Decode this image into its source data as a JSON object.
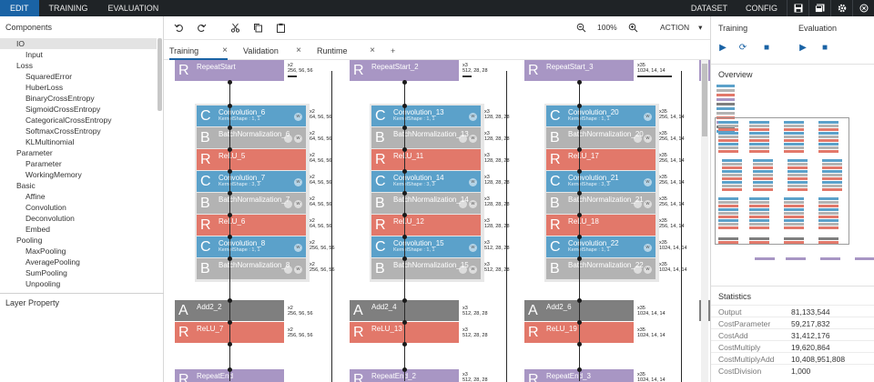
{
  "topbar": {
    "tabs": [
      "EDIT",
      "TRAINING",
      "EVALUATION"
    ],
    "right": [
      "DATASET",
      "CONFIG"
    ],
    "icons": [
      "save-icon",
      "save-all-icon",
      "gear-icon",
      "close-icon"
    ]
  },
  "left": {
    "header": "Components",
    "tree": [
      {
        "label": "IO",
        "level": 0,
        "selected": true
      },
      {
        "label": "Input",
        "level": 1
      },
      {
        "label": "Loss",
        "level": 0
      },
      {
        "label": "SquaredError",
        "level": 1
      },
      {
        "label": "HuberLoss",
        "level": 1
      },
      {
        "label": "BinaryCrossEntropy",
        "level": 1
      },
      {
        "label": "SigmoidCrossEntropy",
        "level": 1
      },
      {
        "label": "CategoricalCrossEntropy",
        "level": 1
      },
      {
        "label": "SoftmaxCrossEntropy",
        "level": 1
      },
      {
        "label": "KLMultinomial",
        "level": 1
      },
      {
        "label": "Parameter",
        "level": 0
      },
      {
        "label": "Parameter",
        "level": 1
      },
      {
        "label": "WorkingMemory",
        "level": 1
      },
      {
        "label": "Basic",
        "level": 0
      },
      {
        "label": "Affine",
        "level": 1
      },
      {
        "label": "Convolution",
        "level": 1
      },
      {
        "label": "Deconvolution",
        "level": 1
      },
      {
        "label": "Embed",
        "level": 1
      },
      {
        "label": "Pooling",
        "level": 0
      },
      {
        "label": "MaxPooling",
        "level": 1
      },
      {
        "label": "AveragePooling",
        "level": 1
      },
      {
        "label": "SumPooling",
        "level": 1
      },
      {
        "label": "Unpooling",
        "level": 1
      }
    ],
    "layer_property": "Layer Property"
  },
  "toolbar": {
    "zoom": "100%",
    "action": "ACTION"
  },
  "tabs": [
    {
      "label": "Training",
      "active": true
    },
    {
      "label": "Validation"
    },
    {
      "label": "Runtime"
    }
  ],
  "add_tab": "+",
  "tab_close": "×",
  "right": {
    "tabs": [
      "Training",
      "Evaluation"
    ],
    "overview": "Overview",
    "stats_title": "Statistics",
    "stats": [
      {
        "k": "Output",
        "v": "81,133,544"
      },
      {
        "k": "CostParameter",
        "v": "59,217,832"
      },
      {
        "k": "CostAdd",
        "v": "31,412,176"
      },
      {
        "k": "CostMultiply",
        "v": "19,620,864"
      },
      {
        "k": "CostMultiplyAdd",
        "v": "10,408,951,808"
      },
      {
        "k": "CostDivision",
        "v": "1,000"
      }
    ]
  },
  "columns": [
    {
      "repeat_start": "RepeatStart",
      "repeat_start_dim": "x2\n256, 56, 56",
      "layers": [
        {
          "letter": "C",
          "name": "Convolution_6",
          "sub": "KernelShape : 1, 1",
          "color": "blue",
          "dim": "x2\n64, 56, 56"
        },
        {
          "letter": "B",
          "name": "BatchNormalization_6",
          "color": "gray",
          "dim": "x2\n64, 56, 56"
        },
        {
          "letter": "R",
          "name": "ReLU_5",
          "color": "red",
          "dim": "x2\n64, 56, 56"
        },
        {
          "letter": "C",
          "name": "Convolution_7",
          "sub": "KernelShape : 3, 3",
          "color": "blue",
          "dim": "x2\n64, 56, 56"
        },
        {
          "letter": "B",
          "name": "BatchNormalization_7",
          "color": "gray",
          "dim": "x2\n64, 56, 56"
        },
        {
          "letter": "R",
          "name": "ReLU_6",
          "color": "red",
          "dim": "x2\n64, 56, 56"
        },
        {
          "letter": "C",
          "name": "Convolution_8",
          "sub": "KernelShape : 1, 1",
          "color": "blue",
          "dim": "x2\n256, 56, 56"
        },
        {
          "letter": "B",
          "name": "BatchNormalization_8",
          "color": "gray",
          "dim": "x2\n256, 56, 56"
        }
      ],
      "add": "Add2_2",
      "add_dim": "x2\n256, 56, 56",
      "relu": "ReLU_7",
      "relu_dim": "x2\n256, 56, 56",
      "repeat_end": "RepeatEnd",
      "repeat_end_dim": ""
    },
    {
      "repeat_start": "RepeatStart_2",
      "repeat_start_dim": "x3\n512, 28, 28",
      "layers": [
        {
          "letter": "C",
          "name": "Convolution_13",
          "sub": "KernelShape : 1, 1",
          "color": "blue",
          "dim": "x3\n128, 28, 28"
        },
        {
          "letter": "B",
          "name": "BatchNormalization_13",
          "color": "gray",
          "dim": "x3\n128, 28, 28"
        },
        {
          "letter": "R",
          "name": "ReLU_11",
          "color": "red",
          "dim": "x3\n128, 28, 28"
        },
        {
          "letter": "C",
          "name": "Convolution_14",
          "sub": "KernelShape : 3, 3",
          "color": "blue",
          "dim": "x3\n128, 28, 28"
        },
        {
          "letter": "B",
          "name": "BatchNormalization_14",
          "color": "gray",
          "dim": "x3\n128, 28, 28"
        },
        {
          "letter": "R",
          "name": "ReLU_12",
          "color": "red",
          "dim": "x3\n128, 28, 28"
        },
        {
          "letter": "C",
          "name": "Convolution_15",
          "sub": "KernelShape : 1, 1",
          "color": "blue",
          "dim": "x3\n512, 28, 28"
        },
        {
          "letter": "B",
          "name": "BatchNormalization_15",
          "color": "gray",
          "dim": "x3\n512, 28, 28"
        }
      ],
      "add": "Add2_4",
      "add_dim": "x3\n512, 28, 28",
      "relu": "ReLU_13",
      "relu_dim": "x3\n512, 28, 28",
      "repeat_end": "RepeatEnd_2",
      "repeat_end_dim": "x3\n512, 28, 28"
    },
    {
      "repeat_start": "RepeatStart_3",
      "repeat_start_dim": "x35\n1024, 14, 14",
      "layers": [
        {
          "letter": "C",
          "name": "Convolution_20",
          "sub": "KernelShape : 1, 1",
          "color": "blue",
          "dim": "x35\n256, 14, 14"
        },
        {
          "letter": "B",
          "name": "BatchNormalization_20",
          "color": "gray",
          "dim": "x35\n256, 14, 14"
        },
        {
          "letter": "R",
          "name": "ReLU_17",
          "color": "red",
          "dim": "x35\n256, 14, 14"
        },
        {
          "letter": "C",
          "name": "Convolution_21",
          "sub": "KernelShape : 3, 3",
          "color": "blue",
          "dim": "x35\n256, 14, 14"
        },
        {
          "letter": "B",
          "name": "BatchNormalization_21",
          "color": "gray",
          "dim": "x35\n256, 14, 14"
        },
        {
          "letter": "R",
          "name": "ReLU_18",
          "color": "red",
          "dim": "x35\n256, 14, 14"
        },
        {
          "letter": "C",
          "name": "Convolution_22",
          "sub": "KernelShape : 1, 1",
          "color": "blue",
          "dim": "x35\n1024, 14, 14"
        },
        {
          "letter": "B",
          "name": "BatchNormalization_22",
          "color": "gray",
          "dim": "x35\n1024, 14, 14"
        }
      ],
      "add": "Add2_6",
      "add_dim": "x35\n1024, 14, 14",
      "relu": "ReLU_19",
      "relu_dim": "x35\n1024, 14, 14",
      "repeat_end": "RepeatEnd_3",
      "repeat_end_dim": "x35\n1024, 14, 14"
    }
  ]
}
